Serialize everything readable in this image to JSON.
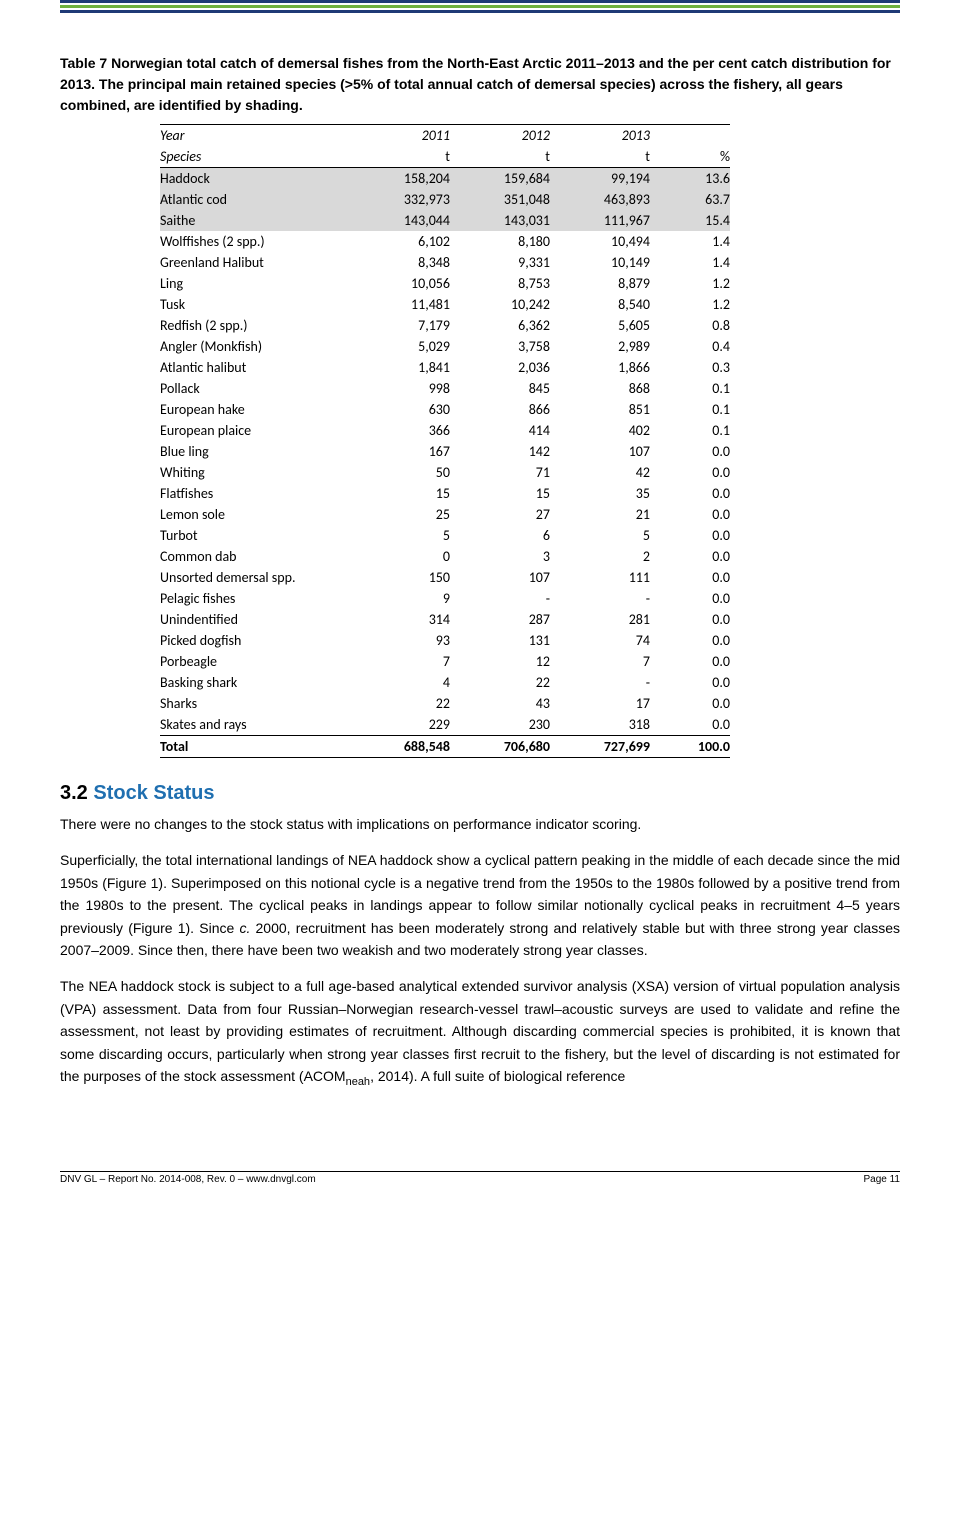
{
  "caption": "Table 7 Norwegian total catch of demersal fishes from the North-East Arctic 2011–2013 and the per cent catch distribution for 2013. The principal main retained species (>5% of total annual catch of demersal species) across the fishery, all gears combined, are identified by shading.",
  "table": {
    "year_label": "Year",
    "species_label": "Species",
    "years": [
      "2011",
      "2012",
      "2013"
    ],
    "units": [
      "t",
      "t",
      "t",
      "%"
    ],
    "rows": [
      {
        "sp": "Haddock",
        "c1": "158,204",
        "c2": "159,684",
        "c3": "99,194",
        "p": "13.6",
        "shade": true
      },
      {
        "sp": "Atlantic cod",
        "c1": "332,973",
        "c2": "351,048",
        "c3": "463,893",
        "p": "63.7",
        "shade": true
      },
      {
        "sp": "Saithe",
        "c1": "143,044",
        "c2": "143,031",
        "c3": "111,967",
        "p": "15.4",
        "shade": true
      },
      {
        "sp": "Wolffishes (2 spp.)",
        "c1": "6,102",
        "c2": "8,180",
        "c3": "10,494",
        "p": "1.4",
        "shade": false
      },
      {
        "sp": "Greenland Halibut",
        "c1": "8,348",
        "c2": "9,331",
        "c3": "10,149",
        "p": "1.4",
        "shade": false
      },
      {
        "sp": "Ling",
        "c1": "10,056",
        "c2": "8,753",
        "c3": "8,879",
        "p": "1.2",
        "shade": false
      },
      {
        "sp": "Tusk",
        "c1": "11,481",
        "c2": "10,242",
        "c3": "8,540",
        "p": "1.2",
        "shade": false
      },
      {
        "sp": "Redfish (2 spp.)",
        "c1": "7,179",
        "c2": "6,362",
        "c3": "5,605",
        "p": "0.8",
        "shade": false
      },
      {
        "sp": "Angler (Monkfish)",
        "c1": "5,029",
        "c2": "3,758",
        "c3": "2,989",
        "p": "0.4",
        "shade": false
      },
      {
        "sp": "Atlantic halibut",
        "c1": "1,841",
        "c2": "2,036",
        "c3": "1,866",
        "p": "0.3",
        "shade": false
      },
      {
        "sp": "Pollack",
        "c1": "998",
        "c2": "845",
        "c3": "868",
        "p": "0.1",
        "shade": false
      },
      {
        "sp": "European hake",
        "c1": "630",
        "c2": "866",
        "c3": "851",
        "p": "0.1",
        "shade": false
      },
      {
        "sp": "European plaice",
        "c1": "366",
        "c2": "414",
        "c3": "402",
        "p": "0.1",
        "shade": false
      },
      {
        "sp": "Blue ling",
        "c1": "167",
        "c2": "142",
        "c3": "107",
        "p": "0.0",
        "shade": false
      },
      {
        "sp": "Whiting",
        "c1": "50",
        "c2": "71",
        "c3": "42",
        "p": "0.0",
        "shade": false
      },
      {
        "sp": "Flatfishes",
        "c1": "15",
        "c2": "15",
        "c3": "35",
        "p": "0.0",
        "shade": false
      },
      {
        "sp": "Lemon sole",
        "c1": "25",
        "c2": "27",
        "c3": "21",
        "p": "0.0",
        "shade": false
      },
      {
        "sp": "Turbot",
        "c1": "5",
        "c2": "6",
        "c3": "5",
        "p": "0.0",
        "shade": false
      },
      {
        "sp": "Common dab",
        "c1": "0",
        "c2": "3",
        "c3": "2",
        "p": "0.0",
        "shade": false
      },
      {
        "sp": "Unsorted demersal spp.",
        "c1": "150",
        "c2": "107",
        "c3": "111",
        "p": "0.0",
        "shade": false
      },
      {
        "sp": "Pelagic fishes",
        "c1": "9",
        "c2": "-",
        "c3": "-",
        "p": "0.0",
        "shade": false
      },
      {
        "sp": "Unindentified",
        "c1": "314",
        "c2": "287",
        "c3": "281",
        "p": "0.0",
        "shade": false
      },
      {
        "sp": "Picked dogfish",
        "c1": "93",
        "c2": "131",
        "c3": "74",
        "p": "0.0",
        "shade": false
      },
      {
        "sp": "Porbeagle",
        "c1": "7",
        "c2": "12",
        "c3": "7",
        "p": "0.0",
        "shade": false
      },
      {
        "sp": "Basking shark",
        "c1": "4",
        "c2": "22",
        "c3": "-",
        "p": "0.0",
        "shade": false
      },
      {
        "sp": "Sharks",
        "c1": "22",
        "c2": "43",
        "c3": "17",
        "p": "0.0",
        "shade": false
      },
      {
        "sp": "Skates and rays",
        "c1": "229",
        "c2": "230",
        "c3": "318",
        "p": "0.0",
        "shade": false
      }
    ],
    "total": {
      "sp": "Total",
      "c1": "688,548",
      "c2": "706,680",
      "c3": "727,699",
      "p": "100.0"
    }
  },
  "section": {
    "num": "3.2",
    "title": "Stock Status"
  },
  "para1": "There were no changes to the stock status with implications on performance indicator scoring.",
  "para2_a": "Superficially, the total international landings of NEA haddock show a cyclical pattern peaking in the middle of each decade since the mid 1950s (Figure 1). Superimposed on this notional cycle is a negative trend from the 1950s to the 1980s followed by a positive trend from the 1980s to the present. The cyclical peaks in landings appear to follow similar notionally cyclical peaks in recruitment 4–5 years previously (Figure 1). Since ",
  "para2_ital": "c.",
  "para2_b": " 2000, recruitment has been moderately strong and relatively stable but with three strong year classes 2007–2009. Since then, there have been two weakish and two moderately strong year classes.",
  "para3_a": "The NEA haddock stock is subject to a full age-based analytical extended survivor analysis (XSA) version of virtual population analysis (VPA) assessment. Data from four Russian–Norwegian research-vessel trawl–acoustic surveys are used to validate and refine the assessment, not least by providing estimates of recruitment. Although discarding commercial species is prohibited, it is known that some discarding occurs, particularly when strong year classes first recruit to the fishery, but the level of discarding is not estimated for the purposes of the stock assessment (ACOM",
  "para3_sub": "neah",
  "para3_b": ", 2014). A full suite of biological reference",
  "footer": {
    "left": "DNV GL – Report No. 2014-008, Rev. 0 – www.dnvgl.com",
    "right": "Page 11"
  }
}
